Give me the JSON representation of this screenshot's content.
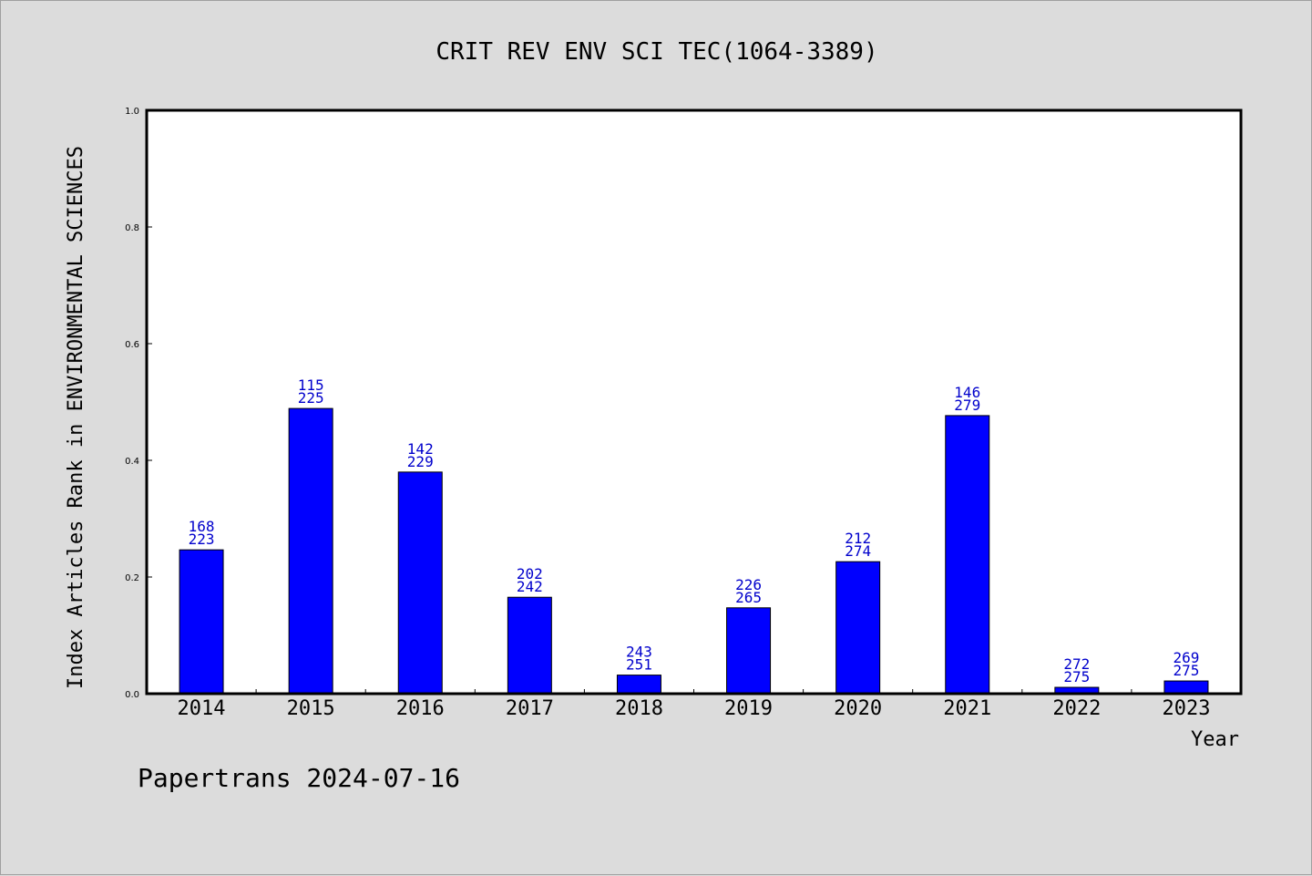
{
  "chart_data": {
    "type": "bar",
    "title": "CRIT REV ENV SCI TEC(1064-3389)",
    "xlabel": "Year",
    "ylabel": "Index Articles Rank in ENVIRONMENTAL SCIENCES",
    "categories": [
      "2014",
      "2015",
      "2016",
      "2017",
      "2018",
      "2019",
      "2020",
      "2021",
      "2022",
      "2023"
    ],
    "values": [
      0.2466,
      0.4889,
      0.3799,
      0.1653,
      0.0319,
      0.1472,
      0.2263,
      0.4767,
      0.0109,
      0.0218
    ],
    "annotations": [
      [
        "168",
        "223"
      ],
      [
        "115",
        "225"
      ],
      [
        "142",
        "229"
      ],
      [
        "202",
        "242"
      ],
      [
        "243",
        "251"
      ],
      [
        "226",
        "265"
      ],
      [
        "212",
        "274"
      ],
      [
        "146",
        "279"
      ],
      [
        "272",
        "275"
      ],
      [
        "269",
        "275"
      ]
    ],
    "ylim": [
      0,
      1.0
    ],
    "yticks": [
      "0.0",
      "0.2",
      "0.4",
      "0.6",
      "0.8",
      "1.0"
    ],
    "bar_color": "#0000ff",
    "annotation_color": "#0000cc",
    "grid": false
  },
  "footer": "Papertrans 2024-07-16"
}
